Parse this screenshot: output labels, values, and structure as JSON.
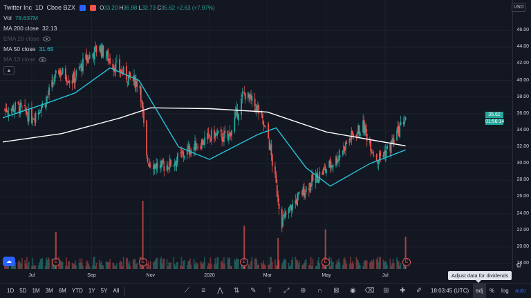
{
  "symbol": {
    "name": "Twitter Inc",
    "interval": "1D",
    "exchange": "Cboe BZX",
    "status_colors": {
      "dot1": "#2962ff",
      "dot2": "#ef5350"
    },
    "ohlc": {
      "open_label": "O",
      "open": "33.20",
      "high_label": "H",
      "high": "36.98",
      "low_label": "L",
      "low": "32.73",
      "close_label": "C",
      "close": "35.62",
      "change": "+2.63 (+7.97%)"
    }
  },
  "indicators": [
    {
      "label": "Vol",
      "value": "78.637M",
      "value_color": "#26a69a",
      "visible": true
    },
    {
      "label": "MA 200 close",
      "value": "32.13",
      "value_color": "#d1d4dc",
      "visible": true
    },
    {
      "label": "EMA 20 close",
      "value": "",
      "visible": false,
      "icon": "eye-icon"
    },
    {
      "label": "MA 50 close",
      "value": "31.65",
      "value_color": "#26c6da",
      "visible": true
    },
    {
      "label": "MA 13 close",
      "value": "",
      "visible": false,
      "icon": "eye-icon"
    }
  ],
  "price_axis": {
    "currency": "USD",
    "ticks": [
      "46.00",
      "44.00",
      "42.00",
      "40.00",
      "38.00",
      "36.00",
      "34.00",
      "32.00",
      "30.00",
      "28.00",
      "26.00",
      "24.00",
      "22.00",
      "20.00",
      "18.00"
    ],
    "last_price": "35.62",
    "countdown": "01:56:14",
    "top_cut": "4"
  },
  "time_axis": {
    "ticks": [
      {
        "label": "Jul",
        "date": "2019-07-01"
      },
      {
        "label": "Sep",
        "date": "2019-09-01"
      },
      {
        "label": "Nov",
        "date": "2019-11-01"
      },
      {
        "label": "2020",
        "date": "2020-01-01"
      },
      {
        "label": "Mar",
        "date": "2020-03-01"
      },
      {
        "label": "May",
        "date": "2020-05-01"
      },
      {
        "label": "Jul",
        "date": "2020-07-01"
      }
    ]
  },
  "earnings": [
    {
      "label": "E",
      "date": "2019-07-26"
    },
    {
      "label": "E",
      "date": "2019-10-24"
    },
    {
      "label": "E",
      "date": "2020-02-06"
    },
    {
      "label": "E",
      "date": "2020-04-30"
    },
    {
      "label": "E",
      "date": "2020-07-23"
    }
  ],
  "bottom_bar": {
    "ranges": [
      "1D",
      "5D",
      "1M",
      "3M",
      "6M",
      "YTD",
      "1Y",
      "5Y",
      "All"
    ],
    "tools": [
      "trend-line-icon",
      "fib-icon",
      "pattern-icon",
      "prediction-icon",
      "brush-icon",
      "text-icon",
      "measure-icon",
      "zoom-icon",
      "magnet-icon",
      "lock-icon",
      "eye-icon",
      "trash-icon",
      "ruler-icon",
      "crosshair-icon",
      "pencil-icon"
    ],
    "clock": "18:03:45 (UTC)",
    "adj": "adj",
    "percent": "%",
    "log": "log",
    "auto": "auto",
    "tooltip": "Adjust data for dividends"
  },
  "chart_data": {
    "type": "candlestick",
    "y_range": [
      17.5,
      48.0
    ],
    "x_range": [
      "2019-06-01",
      "2020-07-23"
    ],
    "candles_approx": [
      {
        "date": "2019-06-03",
        "close": 36.5
      },
      {
        "date": "2019-06-17",
        "close": 36.8
      },
      {
        "date": "2019-07-01",
        "close": 35.5
      },
      {
        "date": "2019-07-15",
        "close": 37.5
      },
      {
        "date": "2019-07-29",
        "close": 41.2
      },
      {
        "date": "2019-08-12",
        "close": 40.0
      },
      {
        "date": "2019-08-26",
        "close": 42.5
      },
      {
        "date": "2019-09-09",
        "close": 44.0
      },
      {
        "date": "2019-09-23",
        "close": 42.0
      },
      {
        "date": "2019-10-07",
        "close": 40.5
      },
      {
        "date": "2019-10-21",
        "close": 39.5
      },
      {
        "date": "2019-10-28",
        "close": 30.5
      },
      {
        "date": "2019-11-11",
        "close": 29.5
      },
      {
        "date": "2019-11-25",
        "close": 30.2
      },
      {
        "date": "2019-12-09",
        "close": 31.5
      },
      {
        "date": "2019-12-23",
        "close": 32.5
      },
      {
        "date": "2020-01-06",
        "close": 33.5
      },
      {
        "date": "2020-01-20",
        "close": 33.0
      },
      {
        "date": "2020-02-06",
        "close": 38.5
      },
      {
        "date": "2020-02-20",
        "close": 36.5
      },
      {
        "date": "2020-03-02",
        "close": 33.0
      },
      {
        "date": "2020-03-16",
        "close": 23.0
      },
      {
        "date": "2020-03-30",
        "close": 25.5
      },
      {
        "date": "2020-04-13",
        "close": 27.5
      },
      {
        "date": "2020-04-27",
        "close": 29.0
      },
      {
        "date": "2020-05-11",
        "close": 30.5
      },
      {
        "date": "2020-05-25",
        "close": 33.0
      },
      {
        "date": "2020-06-08",
        "close": 34.5
      },
      {
        "date": "2020-06-22",
        "close": 30.5
      },
      {
        "date": "2020-07-06",
        "close": 32.0
      },
      {
        "date": "2020-07-22",
        "close": 35.62
      }
    ],
    "ma200_approx": [
      {
        "date": "2019-06-01",
        "value": 32.6
      },
      {
        "date": "2019-08-01",
        "value": 33.6
      },
      {
        "date": "2019-10-01",
        "value": 35.5
      },
      {
        "date": "2019-11-01",
        "value": 36.7
      },
      {
        "date": "2020-01-01",
        "value": 36.6
      },
      {
        "date": "2020-03-01",
        "value": 36.2
      },
      {
        "date": "2020-05-01",
        "value": 33.8
      },
      {
        "date": "2020-07-22",
        "value": 32.13
      }
    ],
    "ma50_approx": [
      {
        "date": "2019-06-01",
        "value": 35.5
      },
      {
        "date": "2019-07-15",
        "value": 37.2
      },
      {
        "date": "2019-08-15",
        "value": 38.5
      },
      {
        "date": "2019-09-20",
        "value": 41.5
      },
      {
        "date": "2019-10-20",
        "value": 40.0
      },
      {
        "date": "2019-11-30",
        "value": 32.0
      },
      {
        "date": "2020-01-01",
        "value": 30.5
      },
      {
        "date": "2020-02-20",
        "value": 33.5
      },
      {
        "date": "2020-03-10",
        "value": 34.3
      },
      {
        "date": "2020-04-10",
        "value": 29.5
      },
      {
        "date": "2020-05-05",
        "value": 27.3
      },
      {
        "date": "2020-06-15",
        "value": 30.0
      },
      {
        "date": "2020-07-22",
        "value": 31.65
      }
    ],
    "volume_spikes": [
      {
        "date": "2019-07-26",
        "value": 3.0
      },
      {
        "date": "2019-10-24",
        "value": 5.5
      },
      {
        "date": "2020-02-06",
        "value": 3.5
      },
      {
        "date": "2020-03-12",
        "value": 2.5
      },
      {
        "date": "2020-04-30",
        "value": 3.2
      },
      {
        "date": "2020-07-22",
        "value": 2.6
      }
    ],
    "colors": {
      "up": "#26a69a",
      "down": "#ef5350",
      "ma200": "#ffffff",
      "ma50": "#26c6da",
      "grid": "#1e222d"
    }
  }
}
